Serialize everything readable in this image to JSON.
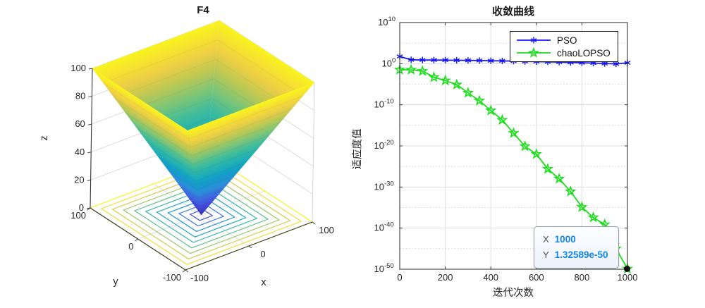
{
  "left_plot": {
    "title": "F4",
    "xlabel": "x",
    "ylabel": "y",
    "zlabel": "z",
    "x_ticks": [
      "-100",
      "0",
      "100"
    ],
    "y_ticks": [
      "100",
      "0",
      "-100"
    ],
    "z_ticks": [
      "0",
      "20",
      "40",
      "60",
      "80",
      "100"
    ]
  },
  "right_plot": {
    "title": "收敛曲线",
    "xlabel": "迭代次数",
    "ylabel": "适应度值",
    "x_ticks": [
      "0",
      "200",
      "400",
      "600",
      "800",
      "1000"
    ],
    "y_tick_exponents": [
      "10",
      "0",
      "-10",
      "-20",
      "-30",
      "-40",
      "-50"
    ],
    "legend_items": [
      {
        "label": "PSO",
        "color": "#1414f0",
        "marker": "asterisk"
      },
      {
        "label": "chaoLOPSO",
        "color": "#1cdd1c",
        "marker": "pentagram"
      }
    ],
    "datatip": {
      "x_label": "X",
      "x_value": "1000",
      "y_label": "Y",
      "y_value": "1.32589e-50",
      "value_color": "#0f86e8"
    }
  },
  "chart_data": [
    {
      "type": "surface3d",
      "title": "F4",
      "description": "3D surface of benchmark function F4 (z = max(|x|,|y|)), square funnel with projected square contour rings on the z=0 plane",
      "x_range": [
        -100,
        100
      ],
      "y_range": [
        -100,
        100
      ],
      "z_range": [
        0,
        100
      ],
      "x_tick_values": [
        -100,
        0,
        100
      ],
      "y_tick_values": [
        100,
        0,
        -100
      ],
      "z_tick_values": [
        0,
        20,
        40,
        60,
        80,
        100
      ],
      "colormap": "parula",
      "contour_levels": [
        10,
        20,
        30,
        40,
        50,
        60,
        70,
        80,
        90,
        100
      ]
    },
    {
      "type": "line",
      "title": "收敛曲线",
      "xlabel": "迭代次数",
      "ylabel": "适应度值",
      "yscale": "log",
      "xlim": [
        0,
        1000
      ],
      "ylim": [
        1e-50,
        10000000000.0
      ],
      "grid": true,
      "legend_position": "north",
      "x": [
        0,
        50,
        100,
        150,
        200,
        250,
        300,
        350,
        400,
        450,
        500,
        550,
        600,
        650,
        700,
        750,
        800,
        850,
        900,
        950,
        1000
      ],
      "series": [
        {
          "name": "PSO",
          "color": "#1414f0",
          "marker": "asterisk",
          "y": [
            56,
            8.9,
            7.9,
            7.6,
            7.2,
            6.8,
            6.3,
            5.8,
            5.2,
            4.8,
            4.2,
            3.5,
            3.2,
            2.8,
            2.4,
            2.0,
            1.7,
            1.4,
            1.1,
            0.9,
            1.6
          ]
        },
        {
          "name": "chaoLOPSO",
          "color": "#1cdd1c",
          "marker": "pentagram",
          "y": [
            0.033,
            0.032,
            0.016,
            0.0005,
            8e-05,
            8e-06,
            8e-08,
            1e-09,
            4e-12,
            2e-14,
            1.3e-17,
            8e-21,
            1e-22,
            2.5e-26,
            1e-28,
            8e-32,
            1.3e-35,
            4e-38,
            8e-40,
            1e-45,
            1.32589e-50
          ]
        }
      ],
      "annotation": {
        "x": 1000,
        "y": 1.32589e-50
      }
    }
  ]
}
